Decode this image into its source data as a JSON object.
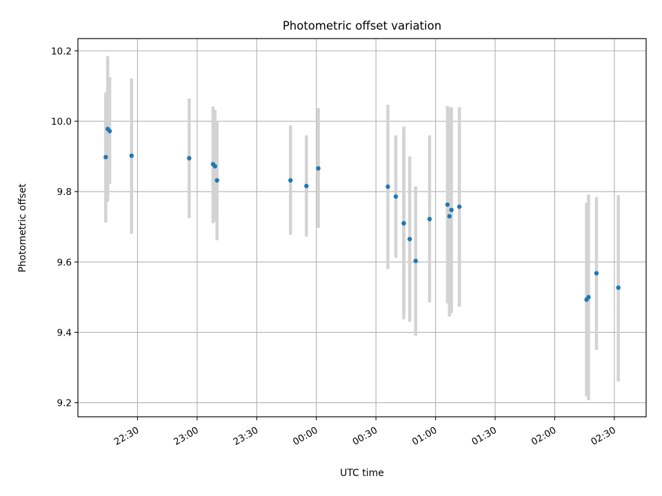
{
  "chart_data": {
    "type": "scatter",
    "title": "Photometric offset variation",
    "xlabel": "UTC time",
    "ylabel": "Photometric offset",
    "x_tick_labels": [
      "22:30",
      "23:00",
      "23:30",
      "00:00",
      "00:30",
      "01:00",
      "01:30",
      "02:00",
      "02:30"
    ],
    "x_ticks": [
      "22:30",
      "23:00",
      "23:30",
      "00:00",
      "00:30",
      "01:00",
      "01:30",
      "02:00",
      "02:30"
    ],
    "y_ticks": [
      9.2,
      9.4,
      9.6,
      9.8,
      10.0,
      10.2
    ],
    "y_tick_labels": [
      "9.2",
      "9.4",
      "9.6",
      "9.8",
      "10.0",
      "10.2"
    ],
    "xlim": [
      "22:00",
      "02:46"
    ],
    "ylim": [
      9.16,
      10.235
    ],
    "grid": true,
    "colors": {
      "point": "#1f77b4",
      "errorbar": "#d3d3d3",
      "grid": "#b0b0b0"
    },
    "points": [
      {
        "t": "22:14",
        "y": 9.898,
        "lo": 9.712,
        "hi": 10.082
      },
      {
        "t": "22:15",
        "y": 9.978,
        "lo": 9.772,
        "hi": 10.185
      },
      {
        "t": "22:16",
        "y": 9.972,
        "lo": 9.822,
        "hi": 10.125
      },
      {
        "t": "22:27",
        "y": 9.902,
        "lo": 9.68,
        "hi": 10.122
      },
      {
        "t": "22:56",
        "y": 9.895,
        "lo": 9.725,
        "hi": 10.065
      },
      {
        "t": "23:08",
        "y": 9.878,
        "lo": 9.71,
        "hi": 10.042
      },
      {
        "t": "23:09",
        "y": 9.872,
        "lo": 9.715,
        "hi": 10.032
      },
      {
        "t": "23:10",
        "y": 9.832,
        "lo": 9.662,
        "hi": 9.998
      },
      {
        "t": "23:47",
        "y": 9.832,
        "lo": 9.677,
        "hi": 9.988
      },
      {
        "t": "23:55",
        "y": 9.816,
        "lo": 9.672,
        "hi": 9.96
      },
      {
        "t": "00:01",
        "y": 9.866,
        "lo": 9.697,
        "hi": 10.037
      },
      {
        "t": "00:36",
        "y": 9.814,
        "lo": 9.58,
        "hi": 10.047
      },
      {
        "t": "00:40",
        "y": 9.786,
        "lo": 9.612,
        "hi": 9.96
      },
      {
        "t": "00:44",
        "y": 9.71,
        "lo": 9.437,
        "hi": 9.985
      },
      {
        "t": "00:44",
        "y": 9.71,
        "lo": 9.452,
        "hi": 9.972
      },
      {
        "t": "00:47",
        "y": 9.665,
        "lo": 9.43,
        "hi": 9.9
      },
      {
        "t": "00:50",
        "y": 9.603,
        "lo": 9.39,
        "hi": 9.815
      },
      {
        "t": "00:57",
        "y": 9.722,
        "lo": 9.485,
        "hi": 9.96
      },
      {
        "t": "01:06",
        "y": 9.763,
        "lo": 9.482,
        "hi": 10.043
      },
      {
        "t": "01:07",
        "y": 9.73,
        "lo": 9.445,
        "hi": 10.04
      },
      {
        "t": "01:08",
        "y": 9.748,
        "lo": 9.455,
        "hi": 10.04
      },
      {
        "t": "01:12",
        "y": 9.757,
        "lo": 9.473,
        "hi": 10.04
      },
      {
        "t": "02:16",
        "y": 9.493,
        "lo": 9.218,
        "hi": 9.768
      },
      {
        "t": "02:17",
        "y": 9.5,
        "lo": 9.207,
        "hi": 9.792
      },
      {
        "t": "02:21",
        "y": 9.568,
        "lo": 9.35,
        "hi": 9.785
      },
      {
        "t": "02:32",
        "y": 9.527,
        "lo": 9.26,
        "hi": 9.79
      }
    ]
  }
}
